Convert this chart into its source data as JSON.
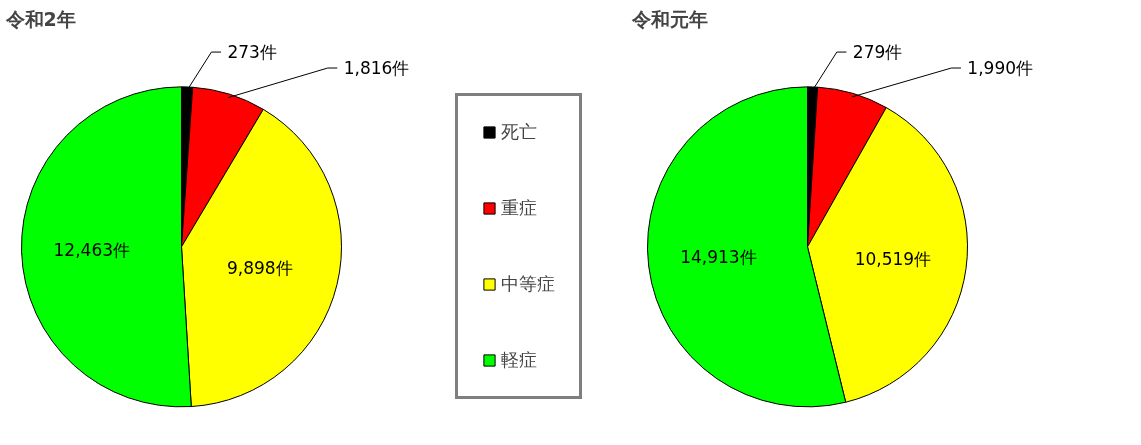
{
  "chart_data": [
    {
      "type": "pie",
      "title": "令和2年",
      "categories": [
        "死亡",
        "重症",
        "中等症",
        "軽症"
      ],
      "values": [
        273,
        1816,
        9898,
        12463
      ],
      "colors": [
        "#000000",
        "#ff0000",
        "#ffff00",
        "#00ff00"
      ],
      "value_labels": [
        "273件",
        "1,816件",
        "9,898件",
        "12,463件"
      ],
      "legend": "right"
    },
    {
      "type": "pie",
      "title": "令和元年",
      "categories": [
        null,
        null,
        null,
        null
      ],
      "values": [
        279,
        1990,
        10519,
        14913
      ],
      "colors": [
        "#000000",
        "#ff0000",
        "#ffff00",
        "#00ff00"
      ],
      "value_labels": [
        "279件",
        "1,990件",
        "10,519件",
        "14,913件"
      ]
    }
  ]
}
